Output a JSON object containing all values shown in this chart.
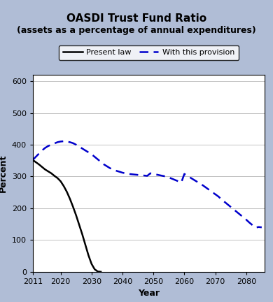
{
  "title_line1": "OASDI Trust Fund Ratio",
  "title_line2": "(assets as a percentage of annual expenditures)",
  "xlabel": "Year",
  "ylabel": "Percent",
  "ylim": [
    0,
    620
  ],
  "yticks": [
    0,
    100,
    200,
    300,
    400,
    500,
    600
  ],
  "xlim": [
    2011,
    2086
  ],
  "xticks": [
    2011,
    2020,
    2030,
    2040,
    2050,
    2060,
    2070,
    2080
  ],
  "background_color": "#b0bdd6",
  "plot_bg_color": "#ffffff",
  "legend_label_present": "Present law",
  "legend_label_provision": "With this provision",
  "present_law_x": [
    2011,
    2012,
    2013,
    2014,
    2015,
    2016,
    2017,
    2018,
    2019,
    2020,
    2021,
    2022,
    2023,
    2024,
    2025,
    2026,
    2027,
    2028,
    2029,
    2030,
    2031,
    2032,
    2033
  ],
  "present_law_y": [
    352,
    345,
    338,
    330,
    322,
    316,
    310,
    302,
    295,
    285,
    270,
    252,
    230,
    205,
    178,
    148,
    118,
    85,
    52,
    25,
    8,
    1,
    0
  ],
  "provision_x": [
    2011,
    2012,
    2013,
    2014,
    2015,
    2016,
    2017,
    2018,
    2019,
    2020,
    2021,
    2022,
    2023,
    2024,
    2025,
    2026,
    2027,
    2028,
    2029,
    2030,
    2031,
    2032,
    2033,
    2034,
    2035,
    2036,
    2037,
    2038,
    2039,
    2040,
    2041,
    2042,
    2043,
    2044,
    2045,
    2046,
    2047,
    2048,
    2049,
    2050,
    2051,
    2052,
    2053,
    2054,
    2055,
    2056,
    2057,
    2058,
    2059,
    2060,
    2061,
    2062,
    2063,
    2064,
    2065,
    2066,
    2067,
    2068,
    2069,
    2070,
    2071,
    2072,
    2073,
    2074,
    2075,
    2076,
    2077,
    2078,
    2079,
    2080,
    2081,
    2082,
    2083,
    2084,
    2085
  ],
  "provision_y": [
    352,
    362,
    372,
    382,
    390,
    396,
    400,
    404,
    408,
    410,
    411,
    410,
    408,
    405,
    400,
    394,
    388,
    382,
    376,
    370,
    362,
    354,
    346,
    338,
    332,
    326,
    322,
    318,
    315,
    312,
    310,
    308,
    307,
    306,
    305,
    304,
    303,
    302,
    310,
    308,
    306,
    304,
    302,
    300,
    297,
    293,
    289,
    285,
    281,
    308,
    302,
    296,
    290,
    284,
    278,
    272,
    265,
    258,
    251,
    244,
    237,
    228,
    220,
    212,
    204,
    196,
    188,
    180,
    172,
    164,
    155,
    147,
    139,
    141,
    140
  ],
  "present_law_color": "#000000",
  "provision_color": "#0000cc",
  "grid_color": "#aaaaaa",
  "title_fontsize": 11,
  "subtitle_fontsize": 9,
  "axis_label_fontsize": 9,
  "tick_fontsize": 8,
  "legend_fontsize": 8
}
